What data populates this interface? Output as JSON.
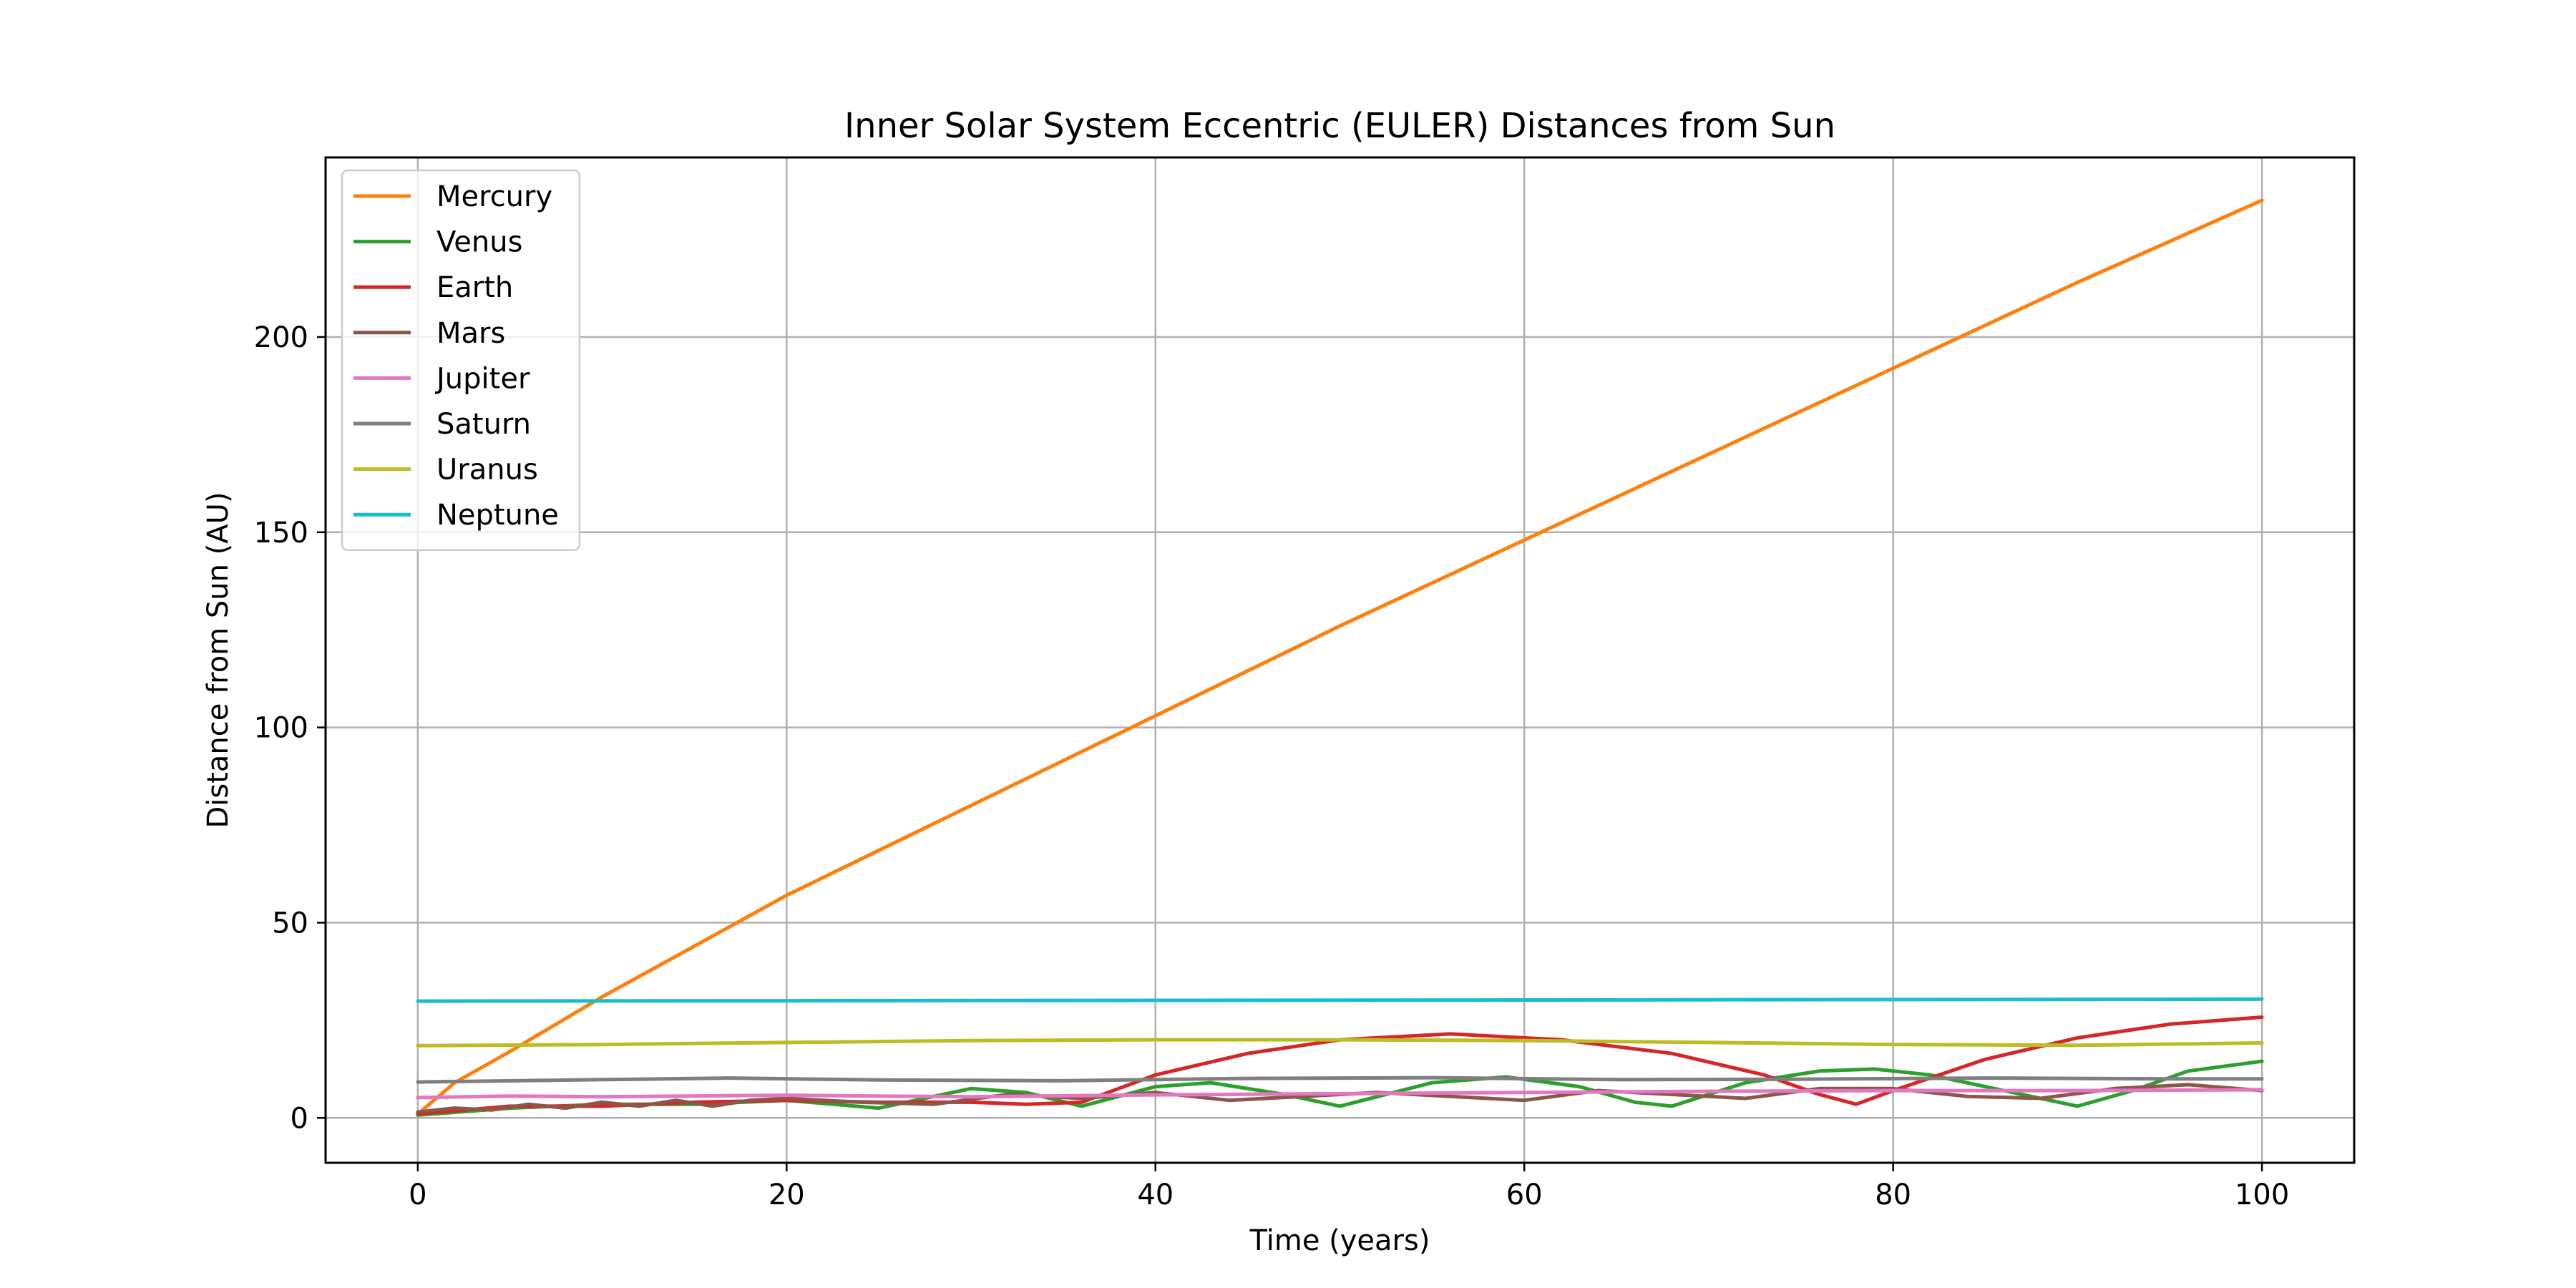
{
  "chart_data": {
    "type": "line",
    "title": "Inner Solar System Eccentric (EULER) Distances from Sun",
    "xlabel": "Time (years)",
    "ylabel": "Distance from Sun (AU)",
    "xlim": [
      -5,
      105
    ],
    "ylim": [
      -11.5,
      246
    ],
    "xticks": [
      0,
      20,
      40,
      60,
      80,
      100
    ],
    "yticks": [
      0,
      50,
      100,
      150,
      200
    ],
    "grid": true,
    "legend_position": "top-left",
    "series": [
      {
        "name": "Mercury",
        "color": "#ff7f0e",
        "x": [
          0,
          2,
          5,
          10,
          15,
          20,
          30,
          40,
          50,
          60,
          70,
          80,
          90,
          100
        ],
        "y": [
          1,
          9,
          17,
          31,
          44,
          57,
          80,
          103,
          126,
          148,
          170,
          192,
          214,
          235
        ]
      },
      {
        "name": "Venus",
        "color": "#2ca02c",
        "x": [
          0,
          5,
          10,
          15,
          20,
          25,
          30,
          33,
          36,
          40,
          43,
          47,
          50,
          55,
          59,
          63,
          66,
          68,
          72,
          76,
          79,
          82,
          86,
          90,
          93,
          96,
          100
        ],
        "y": [
          0.7,
          2.5,
          3.5,
          3.5,
          4.5,
          2.5,
          7.5,
          6.5,
          3,
          8,
          9,
          6,
          3,
          9,
          10.5,
          8,
          4,
          3,
          9,
          12,
          12.5,
          11,
          7,
          3,
          7,
          12,
          14.5
        ]
      },
      {
        "name": "Earth",
        "color": "#d62728",
        "x": [
          0,
          5,
          10,
          15,
          20,
          25,
          30,
          33,
          36,
          40,
          45,
          50,
          56,
          62,
          68,
          73,
          76,
          78,
          80,
          85,
          90,
          95,
          100
        ],
        "y": [
          1,
          3,
          3,
          4,
          4.5,
          4,
          4,
          3.5,
          4,
          11,
          16.5,
          20,
          21.5,
          20,
          16.5,
          11,
          6,
          3.5,
          7,
          15,
          20.5,
          24,
          25.8
        ]
      },
      {
        "name": "Mars",
        "color": "#8c564b",
        "x": [
          0,
          2,
          4,
          6,
          8,
          10,
          12,
          14,
          16,
          18,
          20,
          24,
          28,
          32,
          36,
          40,
          44,
          48,
          52,
          56,
          60,
          64,
          68,
          72,
          76,
          80,
          84,
          88,
          92,
          96,
          100
        ],
        "y": [
          1.5,
          2.5,
          2,
          3.5,
          2.5,
          4,
          3,
          4.5,
          3,
          4.5,
          5,
          4,
          3.5,
          6,
          5,
          6.5,
          4.5,
          5.5,
          6.5,
          5.5,
          4.5,
          7,
          6,
          5,
          7.5,
          7.5,
          5.5,
          5,
          7.5,
          8.5,
          7
        ]
      },
      {
        "name": "Jupiter",
        "color": "#e377c2",
        "x": [
          0,
          5,
          10,
          20,
          30,
          40,
          50,
          60,
          70,
          80,
          90,
          100
        ],
        "y": [
          5.2,
          5.6,
          5.4,
          5.8,
          5.4,
          5.9,
          6.2,
          6.5,
          6.8,
          7.0,
          7.0,
          7.2
        ]
      },
      {
        "name": "Saturn",
        "color": "#7f7f7f",
        "x": [
          0,
          10,
          17,
          25,
          35,
          45,
          55,
          65,
          75,
          85,
          95,
          100
        ],
        "y": [
          9.2,
          9.8,
          10.2,
          9.7,
          9.5,
          10.1,
          10.3,
          9.8,
          9.9,
          10.2,
          10.0,
          10.0
        ]
      },
      {
        "name": "Uranus",
        "color": "#bcbd22",
        "x": [
          0,
          10,
          20,
          30,
          40,
          50,
          60,
          70,
          80,
          90,
          100
        ],
        "y": [
          18.5,
          18.8,
          19.3,
          19.8,
          20.0,
          20.0,
          19.8,
          19.3,
          18.8,
          18.6,
          19.2
        ]
      },
      {
        "name": "Neptune",
        "color": "#17becf",
        "x": [
          0,
          20,
          40,
          60,
          80,
          100
        ],
        "y": [
          29.9,
          30.0,
          30.1,
          30.2,
          30.3,
          30.4
        ]
      }
    ]
  }
}
